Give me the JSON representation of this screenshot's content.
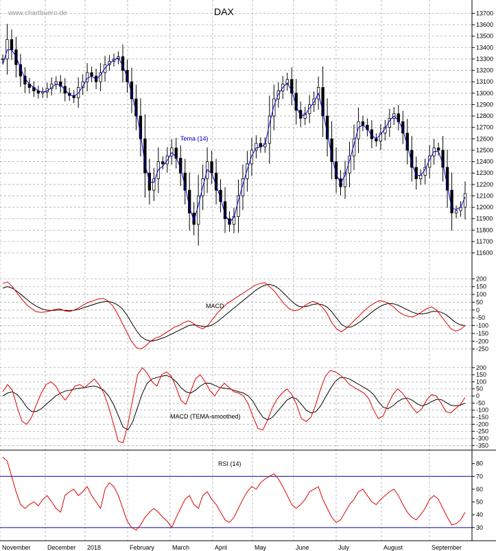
{
  "watermark": "www.chartbuero.de",
  "title": "DAX",
  "colors": {
    "candle": "#000000",
    "tema": "#0000cc",
    "signal": "#000000",
    "macd_red": "#dd0000",
    "rsi": "#dd0000",
    "rsi_lines": "#00009a",
    "grid": "#aaaaaa"
  },
  "x_labels": [
    "November",
    "December",
    "2018",
    "February",
    "March",
    "April",
    "May",
    "June",
    "July",
    "August",
    "September"
  ],
  "chart_data": [
    {
      "type": "candlestick",
      "name": "price",
      "ylim": [
        11600,
        13700
      ],
      "y_ticks": [
        "13700",
        "13600",
        "13500",
        "13400",
        "13300",
        "13200",
        "13100",
        "13000",
        "12900",
        "12800",
        "12700",
        "12600",
        "12500",
        "12400",
        "12300",
        "12200",
        "12100",
        "12000",
        "11900",
        "11800",
        "11700",
        "11600"
      ],
      "overlay_label": "Tema (14)",
      "closes": [
        13300,
        13470,
        13380,
        13250,
        13150,
        13080,
        13050,
        13020,
        13000,
        13010,
        13040,
        13080,
        13100,
        13060,
        13000,
        12980,
        12960,
        13050,
        13100,
        13180,
        13150,
        13100,
        13180,
        13250,
        13280,
        13300,
        13320,
        13200,
        13100,
        12950,
        12800,
        12600,
        12300,
        12150,
        12250,
        12400,
        12380,
        12450,
        12520,
        12430,
        12300,
        12150,
        11950,
        11850,
        12100,
        12250,
        12400,
        12300,
        12150,
        12050,
        11900,
        11850,
        11920,
        12100,
        12250,
        12380,
        12500,
        12560,
        12530,
        12560,
        12800,
        12950,
        13020,
        13080,
        13120,
        13000,
        12850,
        12780,
        12820,
        12900,
        12950,
        13050,
        12800,
        12600,
        12400,
        12250,
        12180,
        12300,
        12450,
        12600,
        12750,
        12720,
        12680,
        12600,
        12580,
        12650,
        12700,
        12780,
        12820,
        12750,
        12650,
        12500,
        12350,
        12250,
        12280,
        12350,
        12450,
        12520,
        12500,
        12350,
        12150,
        11950,
        11970,
        12000,
        12120
      ],
      "ema": [
        13250,
        13380,
        13380,
        13320,
        13220,
        13130,
        13080,
        13050,
        13020,
        13010,
        13020,
        13050,
        13080,
        13070,
        13030,
        12990,
        12970,
        13000,
        13060,
        13130,
        13150,
        13120,
        13160,
        13220,
        13260,
        13290,
        13310,
        13240,
        13140,
        13000,
        12840,
        12640,
        12380,
        12220,
        12220,
        12330,
        12360,
        12410,
        12480,
        12440,
        12340,
        12190,
        12000,
        11880,
        12020,
        12180,
        12330,
        12300,
        12190,
        12080,
        11940,
        11870,
        11910,
        12060,
        12200,
        12330,
        12450,
        12520,
        12530,
        12550,
        12730,
        12890,
        12990,
        13050,
        13090,
        13020,
        12890,
        12800,
        12810,
        12870,
        12920,
        13000,
        12840,
        12650,
        12450,
        12290,
        12210,
        12280,
        12410,
        12550,
        12700,
        12720,
        12690,
        12630,
        12600,
        12640,
        12690,
        12760,
        12800,
        12760,
        12680,
        12540,
        12390,
        12280,
        12280,
        12330,
        12420,
        12490,
        12490,
        12380,
        12190,
        11990,
        11980,
        12000,
        12090
      ]
    },
    {
      "type": "line",
      "name": "MACD",
      "label": "MACD",
      "ylim": [
        -300,
        250
      ],
      "y_ticks": [
        "200",
        "150",
        "100",
        "50",
        "0",
        "-50",
        "-100",
        "-150",
        "-200",
        "-250"
      ],
      "macd": [
        170,
        180,
        150,
        110,
        70,
        35,
        10,
        -10,
        -15,
        -12,
        -5,
        5,
        8,
        -5,
        -10,
        0,
        15,
        35,
        50,
        60,
        70,
        75,
        60,
        30,
        -20,
        -80,
        -140,
        -200,
        -240,
        -250,
        -230,
        -200,
        -180,
        -170,
        -150,
        -130,
        -110,
        -100,
        -80,
        -70,
        -85,
        -110,
        -120,
        -100,
        -60,
        -20,
        10,
        40,
        60,
        80,
        100,
        120,
        140,
        160,
        170,
        175,
        150,
        120,
        80,
        40,
        10,
        -5,
        0,
        20,
        40,
        55,
        45,
        20,
        -20,
        -80,
        -120,
        -140,
        -120,
        -90,
        -60,
        -30,
        0,
        25,
        45,
        60,
        55,
        40,
        20,
        -10,
        -30,
        -40,
        -45,
        -30,
        -10,
        10,
        20,
        0,
        -40,
        -80,
        -120,
        -135,
        -125,
        -100
      ],
      "signal": [
        140,
        150,
        140,
        120,
        95,
        70,
        45,
        25,
        10,
        0,
        -3,
        -2,
        0,
        -2,
        -4,
        -2,
        5,
        15,
        25,
        35,
        45,
        52,
        55,
        50,
        35,
        10,
        -30,
        -80,
        -130,
        -170,
        -190,
        -200,
        -195,
        -185,
        -175,
        -160,
        -145,
        -130,
        -115,
        -100,
        -95,
        -100,
        -105,
        -105,
        -95,
        -75,
        -50,
        -25,
        0,
        25,
        50,
        75,
        100,
        125,
        145,
        160,
        165,
        155,
        135,
        105,
        75,
        45,
        25,
        20,
        25,
        35,
        40,
        35,
        20,
        -10,
        -50,
        -90,
        -110,
        -110,
        -95,
        -75,
        -50,
        -25,
        0,
        20,
        35,
        42,
        40,
        30,
        15,
        0,
        -15,
        -25,
        -25,
        -20,
        -10,
        -8,
        -15,
        -30,
        -55,
        -80,
        -95,
        -100
      ]
    },
    {
      "type": "line",
      "name": "MACD (TEMA-smoothed)",
      "label": "MACD (TEMA-smoothed)",
      "ylim": [
        -370,
        230
      ],
      "y_ticks": [
        "200",
        "150",
        "100",
        "50",
        "0",
        "-50",
        "-100",
        "-150",
        "-200",
        "-250",
        "-300",
        "-350"
      ],
      "macd": [
        30,
        80,
        40,
        -80,
        -180,
        -200,
        -150,
        -60,
        20,
        80,
        100,
        70,
        10,
        -30,
        20,
        70,
        80,
        60,
        90,
        120,
        80,
        20,
        -80,
        -200,
        -320,
        -330,
        -200,
        -20,
        150,
        200,
        160,
        100,
        70,
        150,
        170,
        140,
        60,
        -30,
        -60,
        30,
        120,
        150,
        100,
        40,
        0,
        50,
        90,
        60,
        30,
        20,
        0,
        -60,
        -150,
        -230,
        -240,
        -170,
        -80,
        -20,
        20,
        50,
        10,
        -60,
        -160,
        -180,
        -150,
        -60,
        50,
        140,
        180,
        170,
        150,
        120,
        80,
        60,
        40,
        20,
        -20,
        -100,
        -160,
        -140,
        -60,
        10,
        50,
        20,
        -30,
        -80,
        -120,
        -90,
        -30,
        10,
        0,
        -50,
        -110,
        -120,
        -90,
        -60,
        -10
      ],
      "signal": [
        0,
        20,
        30,
        10,
        -30,
        -80,
        -110,
        -110,
        -90,
        -60,
        -30,
        0,
        20,
        35,
        40,
        50,
        55,
        60,
        65,
        70,
        60,
        40,
        0,
        -60,
        -140,
        -220,
        -240,
        -180,
        -80,
        20,
        90,
        120,
        130,
        140,
        145,
        130,
        100,
        60,
        30,
        20,
        40,
        70,
        90,
        90,
        75,
        60,
        55,
        50,
        40,
        30,
        20,
        0,
        -40,
        -100,
        -150,
        -170,
        -150,
        -110,
        -70,
        -30,
        -10,
        -20,
        -60,
        -100,
        -120,
        -110,
        -70,
        -10,
        50,
        100,
        130,
        130,
        120,
        100,
        80,
        60,
        40,
        10,
        -40,
        -80,
        -90,
        -70,
        -40,
        -20,
        -15,
        -30,
        -55,
        -70,
        -60,
        -40,
        -25,
        -25,
        -45,
        -65,
        -70,
        -65,
        -50
      ]
    },
    {
      "type": "line",
      "name": "RSI (14)",
      "label": "RSI (14)",
      "ylim": [
        24,
        90
      ],
      "y_ticks": [
        "80",
        "70",
        "60",
        "50",
        "40",
        "30"
      ],
      "levels": [
        70,
        30
      ],
      "values": [
        85,
        82,
        70,
        58,
        48,
        45,
        48,
        50,
        47,
        52,
        55,
        50,
        45,
        42,
        55,
        58,
        60,
        55,
        58,
        62,
        55,
        50,
        45,
        60,
        65,
        62,
        55,
        45,
        35,
        30,
        28,
        32,
        38,
        42,
        45,
        42,
        38,
        35,
        30,
        38,
        45,
        52,
        55,
        48,
        45,
        55,
        58,
        52,
        48,
        42,
        36,
        34,
        38,
        45,
        52,
        58,
        62,
        60,
        65,
        68,
        70,
        72,
        68,
        62,
        55,
        48,
        45,
        48,
        52,
        58,
        60,
        62,
        52,
        45,
        38,
        34,
        36,
        42,
        48,
        52,
        58,
        60,
        55,
        50,
        48,
        52,
        55,
        58,
        60,
        55,
        48,
        42,
        38,
        36,
        40,
        45,
        52,
        55,
        52,
        45,
        38,
        32,
        33,
        36,
        42
      ]
    }
  ]
}
